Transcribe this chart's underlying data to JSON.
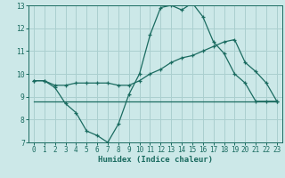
{
  "title": "",
  "xlabel": "Humidex (Indice chaleur)",
  "bg_color": "#cce8e8",
  "line_color": "#1a6b60",
  "grid_color": "#aacfcf",
  "spine_color": "#1a6b60",
  "xlim": [
    -0.5,
    23.5
  ],
  "ylim": [
    7,
    13
  ],
  "xticks": [
    0,
    1,
    2,
    3,
    4,
    5,
    6,
    7,
    8,
    9,
    10,
    11,
    12,
    13,
    14,
    15,
    16,
    17,
    18,
    19,
    20,
    21,
    22,
    23
  ],
  "yticks": [
    7,
    8,
    9,
    10,
    11,
    12,
    13
  ],
  "line1_x": [
    0,
    1,
    2,
    3,
    4,
    5,
    6,
    7,
    8,
    9,
    10,
    11,
    12,
    13,
    14,
    15,
    16,
    17,
    18,
    19,
    20,
    21,
    22,
    23
  ],
  "line1_y": [
    9.7,
    9.7,
    9.4,
    8.7,
    8.3,
    7.5,
    7.3,
    7.0,
    7.8,
    9.1,
    10.0,
    11.7,
    12.9,
    13.0,
    12.8,
    13.1,
    12.5,
    11.4,
    10.9,
    10.0,
    9.6,
    8.8,
    8.8,
    8.8
  ],
  "line2_x": [
    0,
    1,
    2,
    3,
    4,
    5,
    6,
    7,
    8,
    9,
    10,
    11,
    12,
    13,
    14,
    15,
    16,
    17,
    18,
    19,
    20,
    21,
    22,
    23
  ],
  "line2_y": [
    9.7,
    9.7,
    9.5,
    9.5,
    9.6,
    9.6,
    9.6,
    9.6,
    9.5,
    9.5,
    9.7,
    10.0,
    10.2,
    10.5,
    10.7,
    10.8,
    11.0,
    11.2,
    11.4,
    11.5,
    10.5,
    10.1,
    9.6,
    8.8
  ],
  "line3_x": [
    0,
    23
  ],
  "line3_y": [
    8.8,
    8.8
  ],
  "xlabel_fontsize": 6.5,
  "tick_fontsize": 5.5
}
